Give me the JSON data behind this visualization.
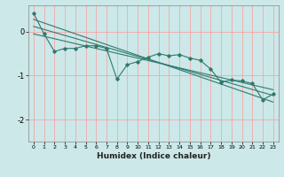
{
  "xlabel": "Humidex (Indice chaleur)",
  "ylabel": "",
  "background_color": "#cce8e8",
  "grid_color": "#ff9999",
  "line_color": "#2d7a6e",
  "xlim": [
    -0.5,
    23.5
  ],
  "ylim": [
    -2.5,
    0.6
  ],
  "yticks": [
    0,
    -1,
    -2
  ],
  "xticks": [
    0,
    1,
    2,
    3,
    4,
    5,
    6,
    7,
    8,
    9,
    10,
    11,
    12,
    13,
    14,
    15,
    16,
    17,
    18,
    19,
    20,
    21,
    22,
    23
  ],
  "series": {
    "main": {
      "x": [
        0,
        1,
        2,
        3,
        4,
        5,
        6,
        7,
        8,
        9,
        10,
        11,
        12,
        13,
        14,
        15,
        16,
        17,
        18,
        19,
        20,
        21,
        22,
        23
      ],
      "y": [
        0.42,
        -0.05,
        -0.45,
        -0.38,
        -0.38,
        -0.32,
        -0.32,
        -0.38,
        -1.08,
        -0.75,
        -0.68,
        -0.58,
        -0.5,
        -0.55,
        -0.52,
        -0.6,
        -0.65,
        -0.85,
        -1.15,
        -1.1,
        -1.12,
        -1.18,
        -1.55,
        -1.42
      ]
    },
    "trend1": {
      "x": [
        0,
        23
      ],
      "y": [
        0.28,
        -1.6
      ]
    },
    "trend2": {
      "x": [
        0,
        23
      ],
      "y": [
        0.12,
        -1.45
      ]
    },
    "trend3": {
      "x": [
        0,
        23
      ],
      "y": [
        -0.05,
        -1.32
      ]
    }
  }
}
